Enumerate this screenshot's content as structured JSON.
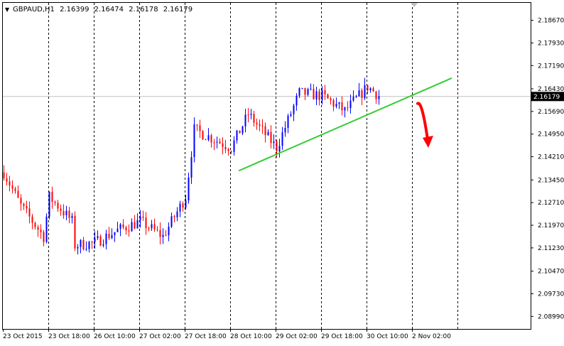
{
  "header": {
    "menu_glyph": "▼",
    "symbol": "GBPAUD,H1",
    "open": "2.16399",
    "high": "2.16474",
    "low": "2.16178",
    "close": "2.16179"
  },
  "current_price_label": "2.16179",
  "colors": {
    "background": "#ffffff",
    "frame": "#000000",
    "grid": "#000000",
    "bull_candle": "#0000ff",
    "bear_candle": "#ff0000",
    "trendline": "#33cc33",
    "arrow": "#ff0000",
    "price_line": "#c0c0c0",
    "price_label_bg": "#000000",
    "price_label_text": "#ffffff"
  },
  "chart_data": {
    "type": "candlestick",
    "title": "GBPAUD,H1",
    "xlabel": "",
    "ylabel": "",
    "ylim": [
      2.0858,
      2.1924
    ],
    "grid": true,
    "y_ticks": [
      "2.18670",
      "2.17930",
      "2.17190",
      "2.16430",
      "2.15690",
      "2.14950",
      "2.14210",
      "2.13450",
      "2.12710",
      "2.11970",
      "2.11230",
      "2.10470",
      "2.09730",
      "2.08990"
    ],
    "x_ticks": [
      "23 Oct 2015",
      "23 Oct 18:00",
      "26 Oct 10:00",
      "27 Oct 02:00",
      "27 Oct 18:00",
      "28 Oct 10:00",
      "29 Oct 02:00",
      "29 Oct 18:00",
      "30 Oct 10:00",
      "2 Nov 02:00"
    ],
    "current_price": 2.16179,
    "price_path": [
      [
        "23 Oct 2015",
        2.137
      ],
      [
        "23 Oct 2015 +6h",
        2.126
      ],
      [
        "23 Oct 2015 +14h",
        2.116
      ],
      [
        "23 Oct 18:00",
        2.129
      ],
      [
        "23 Oct 18:00 +8h",
        2.121
      ],
      [
        "26 Oct 10:00 -8h",
        2.113
      ],
      [
        "26 Oct 10:00",
        2.114
      ],
      [
        "26 Oct 10:00 +8h",
        2.118
      ],
      [
        "27 Oct 02:00",
        2.121
      ],
      [
        "27 Oct 02:00 +8h",
        2.116
      ],
      [
        "27 Oct 18:00",
        2.129
      ],
      [
        "27 Oct 18:00 +3h",
        2.151
      ],
      [
        "28 Oct 10:00",
        2.145
      ],
      [
        "28 Oct 10:00 +6h",
        2.156
      ],
      [
        "29 Oct 02:00",
        2.145
      ],
      [
        "29 Oct 02:00 +8h",
        2.163
      ],
      [
        "29 Oct 18:00",
        2.162
      ],
      [
        "29 Oct 18:00 +8h",
        2.157
      ],
      [
        "30 Oct 10:00",
        2.165
      ],
      [
        "30 Oct 10:00 +4h",
        2.162
      ]
    ],
    "trendline": {
      "from": [
        "28 Oct 10:00 +3h",
        2.1375
      ],
      "to": [
        "2 Nov 02:00 +14h",
        2.1678
      ],
      "color": "#33cc33"
    },
    "annotation_arrow": {
      "from": [
        "2 Nov 02:00 +2h",
        2.1595
      ],
      "to": [
        "2 Nov 02:00 +6h",
        2.1455
      ],
      "color": "#ff0000"
    }
  }
}
